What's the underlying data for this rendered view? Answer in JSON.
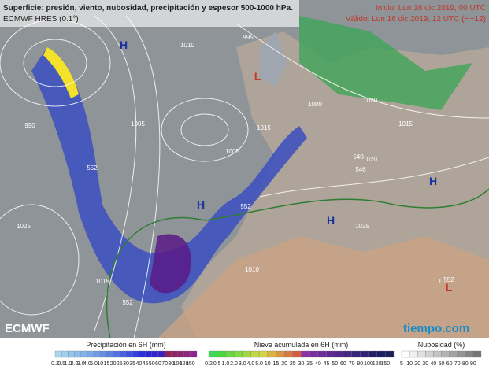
{
  "header": {
    "title": "Superficie: presión, viento, nubosidad, precipitación y espesor 500-1000 hPa.",
    "model": "ECMWF HRES (0.1°)",
    "start": "Inicio: Lun 16 dic 2019, 00 UTC",
    "valid": "Válido: Lun 16 dic 2019, 12 UTC (H+12)"
  },
  "map": {
    "labels": [
      "H",
      "L",
      "H",
      "H",
      "L",
      "H",
      "L",
      "990",
      "995",
      "1000",
      "1005",
      "1010",
      "1015",
      "1020",
      "1025",
      "1025",
      "1010",
      "1015",
      "1020",
      "1005",
      "1015",
      "552",
      "552",
      "552",
      "540",
      "546",
      "552"
    ]
  },
  "logos": {
    "left": "ECMWF",
    "right": "tiempo.com"
  },
  "legends": [
    {
      "title": "Precipitación en 6H (mm)",
      "labels": [
        "0.2",
        "0.5",
        "1.0",
        "2.0",
        "3.0",
        "4.0",
        "5.0",
        "10",
        "15",
        "20",
        "25",
        "30",
        "35",
        "40",
        "45",
        "50",
        "60",
        "70",
        "80",
        "100",
        "120",
        "150"
      ]
    },
    {
      "title": "Nieve acumulada en 6H (mm)",
      "labels": [
        "0.2",
        "0.5",
        "1.0",
        "2.0",
        "3.0",
        "4.0",
        "5.0",
        "10",
        "15",
        "20",
        "25",
        "30",
        "35",
        "40",
        "45",
        "50",
        "60",
        "70",
        "80",
        "100",
        "120",
        "150"
      ]
    },
    {
      "title": "Nubosidad (%)",
      "labels": [
        "5",
        "10",
        "20",
        "30",
        "40",
        "50",
        "60",
        "70",
        "80",
        "90"
      ]
    }
  ]
}
